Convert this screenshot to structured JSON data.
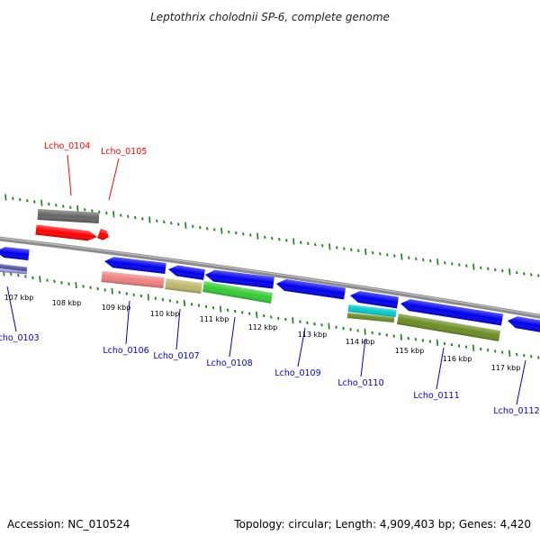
{
  "title": "Leptothrix cholodnii SP-6, complete genome",
  "footer": {
    "accession": "Accession: NC_010524",
    "summary": "Topology: circular; Length: 4,909,403 bp; Genes: 4,420"
  },
  "scale_labels": [
    "107 kbp",
    "108 kbp",
    "109 kbp",
    "110 kbp",
    "111 kbp",
    "112 kbp",
    "113 kbp",
    "114 kbp",
    "115 kbp",
    "116 kbp",
    "117 kbp"
  ],
  "genes_forward": [
    {
      "name": "Lcho_0104",
      "color": "#ff0000"
    },
    {
      "name": "Lcho_0105",
      "color": "#ff0000"
    }
  ],
  "genes_reverse": [
    {
      "name": "Lcho_0103",
      "color": "#0000cc"
    },
    {
      "name": "Lcho_0106",
      "color": "#0000cc"
    },
    {
      "name": "Lcho_0107",
      "color": "#0000cc"
    },
    {
      "name": "Lcho_0108",
      "color": "#0000cc"
    },
    {
      "name": "Lcho_0109",
      "color": "#0000cc"
    },
    {
      "name": "Lcho_0110",
      "color": "#0000cc"
    },
    {
      "name": "Lcho_0111",
      "color": "#0000cc"
    },
    {
      "name": "Lcho_0112",
      "color": "#0000cc"
    }
  ],
  "colors": {
    "forward_label": "#ff0000",
    "reverse_label": "#0000cc",
    "tick": "#1a7a1a",
    "backbone": "#8a8a8a",
    "gene_blue": "#0000ee",
    "gene_red": "#ff0000",
    "gene_gray": "#666666",
    "gene_salmon": "#f08080",
    "gene_khaki": "#bdb76b",
    "gene_green": "#33cc33",
    "gene_cyan": "#00cccc",
    "gene_olive": "#6b8e23",
    "gene_navy": "#5555aa"
  }
}
